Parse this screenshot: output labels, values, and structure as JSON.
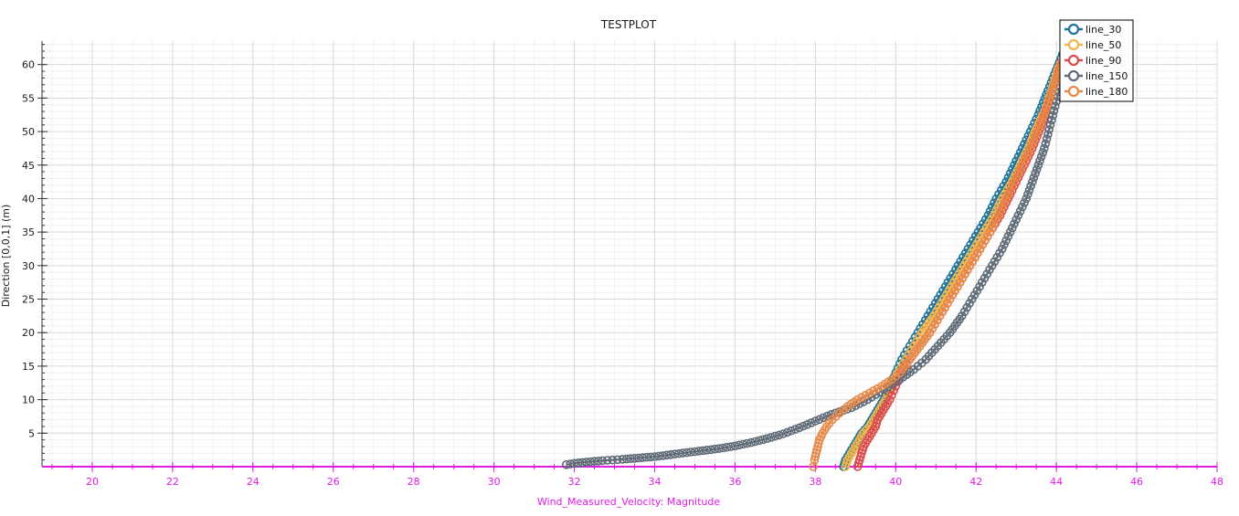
{
  "chart_data": {
    "type": "line",
    "title": "TESTPLOT",
    "xlabel": "Wind_Measured_Velocity: Magnitude",
    "ylabel": "Direction [0,0,1] (m)",
    "xlim": [
      18.75,
      48
    ],
    "ylim": [
      0,
      63.5
    ],
    "x_ticks": [
      20,
      22,
      24,
      26,
      28,
      30,
      32,
      34,
      36,
      38,
      40,
      42,
      44,
      46,
      48
    ],
    "y_ticks": [
      5,
      10,
      15,
      20,
      25,
      30,
      35,
      40,
      45,
      50,
      55,
      60
    ],
    "grid": true,
    "legend_position": "top-right",
    "axis_color": "#e11be6",
    "series": [
      {
        "name": "line_30",
        "color": "#1d7399",
        "points": [
          [
            38.7,
            0
          ],
          [
            38.75,
            1
          ],
          [
            38.85,
            2
          ],
          [
            38.95,
            3
          ],
          [
            39.05,
            4
          ],
          [
            39.15,
            5
          ],
          [
            39.3,
            6
          ],
          [
            39.4,
            7
          ],
          [
            39.5,
            8
          ],
          [
            39.6,
            9
          ],
          [
            39.7,
            10
          ],
          [
            39.85,
            12
          ],
          [
            40.0,
            14
          ],
          [
            40.15,
            16
          ],
          [
            40.35,
            18
          ],
          [
            40.55,
            20
          ],
          [
            40.8,
            22.5
          ],
          [
            41.05,
            25
          ],
          [
            41.3,
            27.5
          ],
          [
            41.55,
            30
          ],
          [
            41.8,
            32.5
          ],
          [
            42.05,
            35
          ],
          [
            42.3,
            37.5
          ],
          [
            42.5,
            40
          ],
          [
            42.75,
            42.5
          ],
          [
            42.95,
            45
          ],
          [
            43.15,
            47.5
          ],
          [
            43.35,
            50
          ],
          [
            43.55,
            52.5
          ],
          [
            43.75,
            55.5
          ],
          [
            43.95,
            58.5
          ],
          [
            44.15,
            61.5
          ]
        ]
      },
      {
        "name": "line_50",
        "color": "#f3b54a",
        "points": [
          [
            38.75,
            0
          ],
          [
            38.8,
            1
          ],
          [
            38.9,
            2
          ],
          [
            39.0,
            3
          ],
          [
            39.1,
            4
          ],
          [
            39.2,
            5
          ],
          [
            39.35,
            6
          ],
          [
            39.45,
            7
          ],
          [
            39.55,
            8
          ],
          [
            39.65,
            9
          ],
          [
            39.75,
            10
          ],
          [
            39.9,
            12
          ],
          [
            40.05,
            14
          ],
          [
            40.25,
            16
          ],
          [
            40.45,
            18
          ],
          [
            40.65,
            20
          ],
          [
            40.95,
            22.5
          ],
          [
            41.2,
            25
          ],
          [
            41.45,
            27.5
          ],
          [
            41.7,
            30
          ],
          [
            41.95,
            32.5
          ],
          [
            42.2,
            35
          ],
          [
            42.45,
            37.5
          ],
          [
            42.65,
            40
          ],
          [
            42.9,
            42.5
          ],
          [
            43.1,
            45
          ],
          [
            43.3,
            47.5
          ],
          [
            43.5,
            50.5
          ],
          [
            43.7,
            53
          ],
          [
            43.9,
            56.5
          ],
          [
            44.05,
            59.5
          ],
          [
            44.25,
            62
          ]
        ]
      },
      {
        "name": "line_90",
        "color": "#dc4b4b",
        "points": [
          [
            39.05,
            0
          ],
          [
            39.1,
            1
          ],
          [
            39.15,
            2
          ],
          [
            39.2,
            3
          ],
          [
            39.3,
            4
          ],
          [
            39.4,
            5
          ],
          [
            39.5,
            6
          ],
          [
            39.55,
            7
          ],
          [
            39.65,
            8
          ],
          [
            39.75,
            9
          ],
          [
            39.85,
            10
          ],
          [
            40.0,
            12
          ],
          [
            40.15,
            14
          ],
          [
            40.35,
            16
          ],
          [
            40.6,
            18
          ],
          [
            40.85,
            20
          ],
          [
            41.1,
            22.5
          ],
          [
            41.35,
            25
          ],
          [
            41.6,
            27.5
          ],
          [
            41.85,
            30
          ],
          [
            42.1,
            32.5
          ],
          [
            42.35,
            35
          ],
          [
            42.6,
            37.5
          ],
          [
            42.8,
            40
          ],
          [
            43.0,
            42.5
          ],
          [
            43.2,
            45
          ],
          [
            43.4,
            47.5
          ],
          [
            43.6,
            50.5
          ],
          [
            43.75,
            53
          ],
          [
            43.95,
            57
          ],
          [
            44.15,
            60
          ],
          [
            44.3,
            62.5
          ]
        ]
      },
      {
        "name": "line_150",
        "color": "#5f6b77",
        "points": [
          [
            31.8,
            0.3
          ],
          [
            32.0,
            0.5
          ],
          [
            32.3,
            0.7
          ],
          [
            32.7,
            0.9
          ],
          [
            33.2,
            1.1
          ],
          [
            33.6,
            1.3
          ],
          [
            34.0,
            1.5
          ],
          [
            34.4,
            1.8
          ],
          [
            34.8,
            2.1
          ],
          [
            35.2,
            2.4
          ],
          [
            35.6,
            2.7
          ],
          [
            36.0,
            3.1
          ],
          [
            36.4,
            3.6
          ],
          [
            36.8,
            4.2
          ],
          [
            37.2,
            4.9
          ],
          [
            37.6,
            5.8
          ],
          [
            38.0,
            6.8
          ],
          [
            38.4,
            7.8
          ],
          [
            38.9,
            8.8
          ],
          [
            39.3,
            10
          ],
          [
            39.7,
            11.5
          ],
          [
            40.1,
            13
          ],
          [
            40.45,
            14.5
          ],
          [
            40.75,
            16
          ],
          [
            41.05,
            18
          ],
          [
            41.35,
            20
          ],
          [
            41.65,
            22.5
          ],
          [
            41.9,
            25
          ],
          [
            42.15,
            27.5
          ],
          [
            42.4,
            30
          ],
          [
            42.65,
            32.5
          ],
          [
            42.85,
            35
          ],
          [
            43.05,
            37.5
          ],
          [
            43.25,
            40
          ],
          [
            43.4,
            42.5
          ],
          [
            43.55,
            45
          ],
          [
            43.7,
            47.5
          ],
          [
            43.85,
            51
          ],
          [
            44.0,
            54.5
          ],
          [
            44.15,
            58
          ],
          [
            44.3,
            61.5
          ]
        ]
      },
      {
        "name": "line_180",
        "color": "#e58a4b",
        "points": [
          [
            37.95,
            0
          ],
          [
            37.98,
            1
          ],
          [
            38.02,
            2
          ],
          [
            38.06,
            3
          ],
          [
            38.1,
            4
          ],
          [
            38.18,
            5
          ],
          [
            38.28,
            6
          ],
          [
            38.42,
            7
          ],
          [
            38.6,
            8
          ],
          [
            38.8,
            9
          ],
          [
            39.05,
            10
          ],
          [
            39.35,
            11
          ],
          [
            39.65,
            12
          ],
          [
            39.9,
            13
          ],
          [
            40.1,
            14
          ],
          [
            40.35,
            16
          ],
          [
            40.6,
            18
          ],
          [
            40.85,
            20
          ],
          [
            41.1,
            22.5
          ],
          [
            41.35,
            25
          ],
          [
            41.6,
            27.5
          ],
          [
            41.85,
            30
          ],
          [
            42.1,
            32.5
          ],
          [
            42.35,
            35
          ],
          [
            42.55,
            37.5
          ],
          [
            42.75,
            40
          ],
          [
            42.95,
            42.5
          ],
          [
            43.15,
            45
          ],
          [
            43.35,
            47.5
          ],
          [
            43.55,
            50.5
          ],
          [
            43.75,
            53.5
          ],
          [
            43.95,
            57
          ],
          [
            44.1,
            60
          ],
          [
            44.3,
            62.5
          ]
        ]
      }
    ]
  }
}
